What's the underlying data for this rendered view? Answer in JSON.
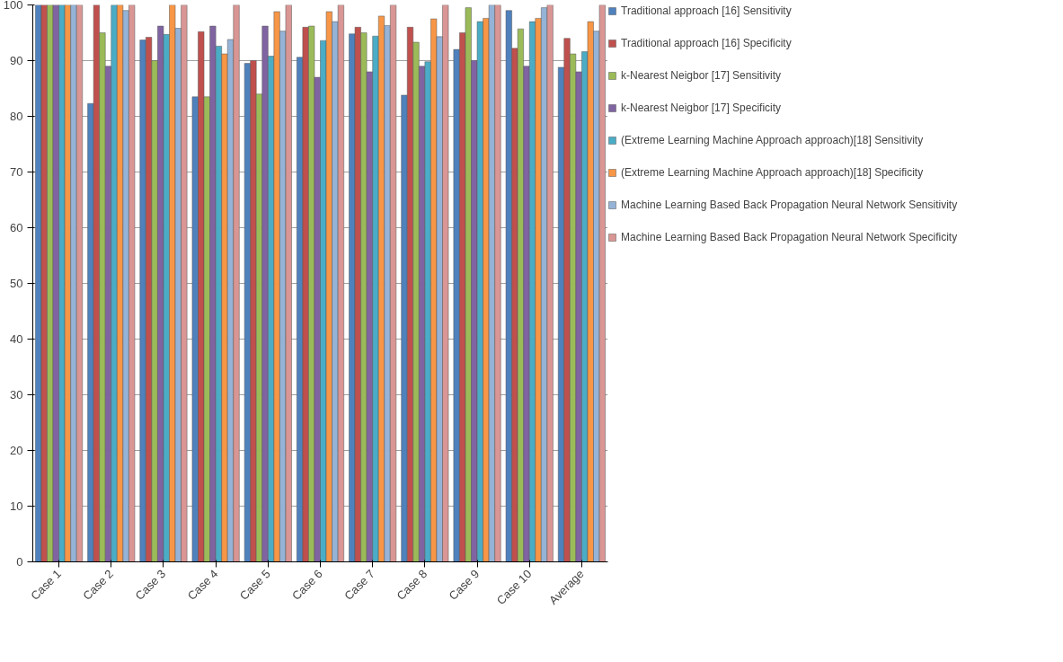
{
  "chart_data": {
    "type": "bar",
    "categories": [
      "Case 1",
      "Case 2",
      "Case 3",
      "Case 4",
      "Case 5",
      "Case 6",
      "Case 7",
      "Case 8",
      "Case 9",
      "Case 10",
      "Average"
    ],
    "series": [
      {
        "name": "Traditional approach [16] Sensitivity",
        "color": "#4f81bd",
        "values": [
          100,
          82.3,
          93.7,
          83.5,
          89.5,
          90.6,
          94.8,
          83.8,
          92,
          99,
          88.8
        ]
      },
      {
        "name": "Traditional approach [16] Specificity",
        "color": "#c0504d",
        "values": [
          100,
          100,
          94.2,
          95.2,
          90,
          96,
          96,
          96,
          95,
          92.2,
          94
        ]
      },
      {
        "name": "k-Nearest Neigbor [17] Sensitivity",
        "color": "#9bbb59",
        "values": [
          100,
          95,
          90,
          83.5,
          84,
          96.2,
          95,
          93.3,
          99.5,
          95.7,
          91.2
        ]
      },
      {
        "name": "k-Nearest Neigbor [17] Specificity",
        "color": "#8064a2",
        "values": [
          100,
          89,
          96.2,
          96.2,
          96.2,
          87,
          88,
          89,
          90,
          89,
          88
        ]
      },
      {
        "name": "(Extreme Learning Machine Approach approach)[18] Sensitivity",
        "color": "#4bacc6",
        "values": [
          100,
          100,
          94.7,
          92.6,
          90.8,
          93.6,
          94.4,
          89.8,
          97,
          97,
          91.6
        ]
      },
      {
        "name": "(Extreme Learning Machine Approach approach)[18] Specificity",
        "color": "#f79646",
        "values": [
          100,
          100,
          100,
          91.2,
          98.8,
          98.8,
          98,
          97.5,
          97.6,
          97.6,
          97
        ]
      },
      {
        "name": "Machine Learning Based Back Propagation Neural Network Sensitivity",
        "color": "#95b3d7",
        "values": [
          100,
          99,
          95.8,
          93.8,
          95.3,
          97,
          96.3,
          94.3,
          100,
          99.5,
          95.3
        ]
      },
      {
        "name": "Machine Learning Based Back Propagation Neural Network Specificity",
        "color": "#d99694",
        "values": [
          100,
          100,
          100,
          100,
          100,
          100,
          100,
          100,
          100,
          100,
          100
        ]
      }
    ],
    "ylim": [
      0,
      100
    ],
    "yticks": [
      0,
      10,
      20,
      30,
      40,
      50,
      60,
      70,
      80,
      90,
      100
    ],
    "grid": "y",
    "legend": "right"
  }
}
